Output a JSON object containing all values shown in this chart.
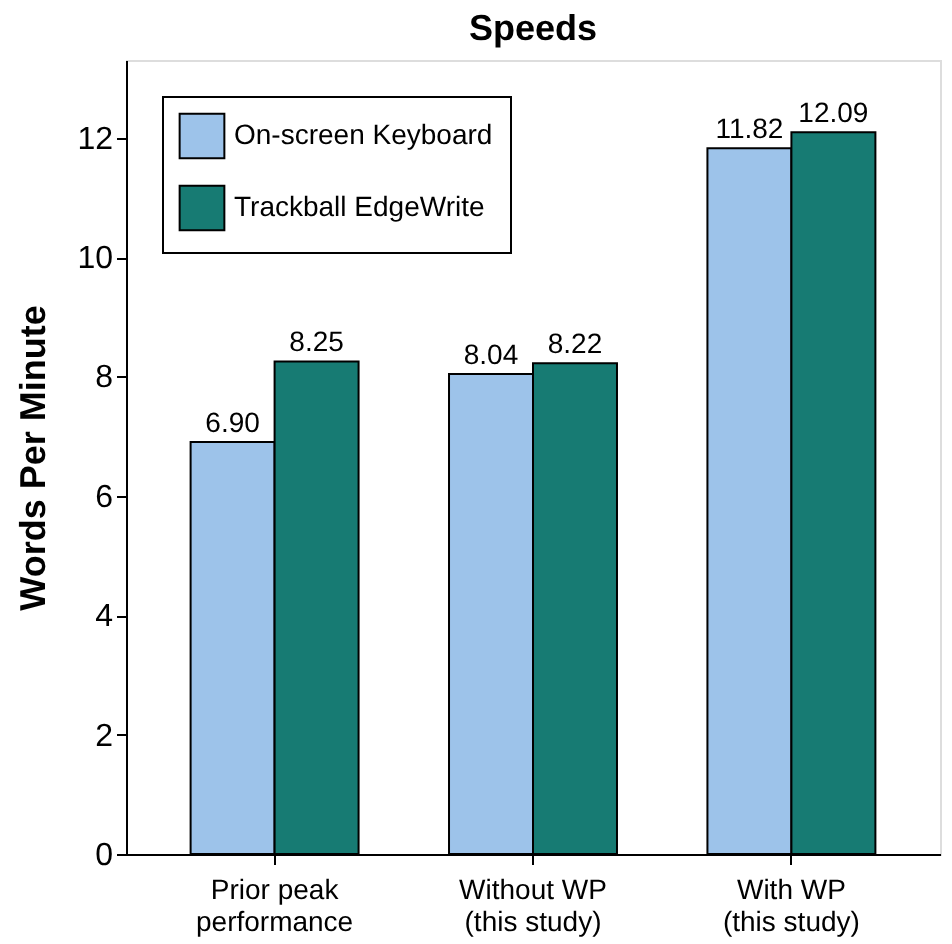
{
  "chart_data": {
    "type": "bar",
    "title": "Speeds",
    "ylabel": "Words Per Minute",
    "categories": [
      "Prior peak\nperformance",
      "Without WP\n(this study)",
      "With WP\n(this study)"
    ],
    "series": [
      {
        "name": "On-screen Keyboard",
        "color": "#9dc3ea",
        "values": [
          6.9,
          8.04,
          11.82
        ],
        "value_labels": [
          "6.90",
          "8.04",
          "11.82"
        ]
      },
      {
        "name": "Trackball EdgeWrite",
        "color": "#177b73",
        "values": [
          8.25,
          8.22,
          12.09
        ],
        "value_labels": [
          "8.25",
          "8.22",
          "12.09"
        ]
      }
    ],
    "ylim": [
      0,
      13.3
    ],
    "yticks": [
      0,
      2,
      4,
      6,
      8,
      10,
      12
    ],
    "grid": false,
    "legend": "top left"
  }
}
